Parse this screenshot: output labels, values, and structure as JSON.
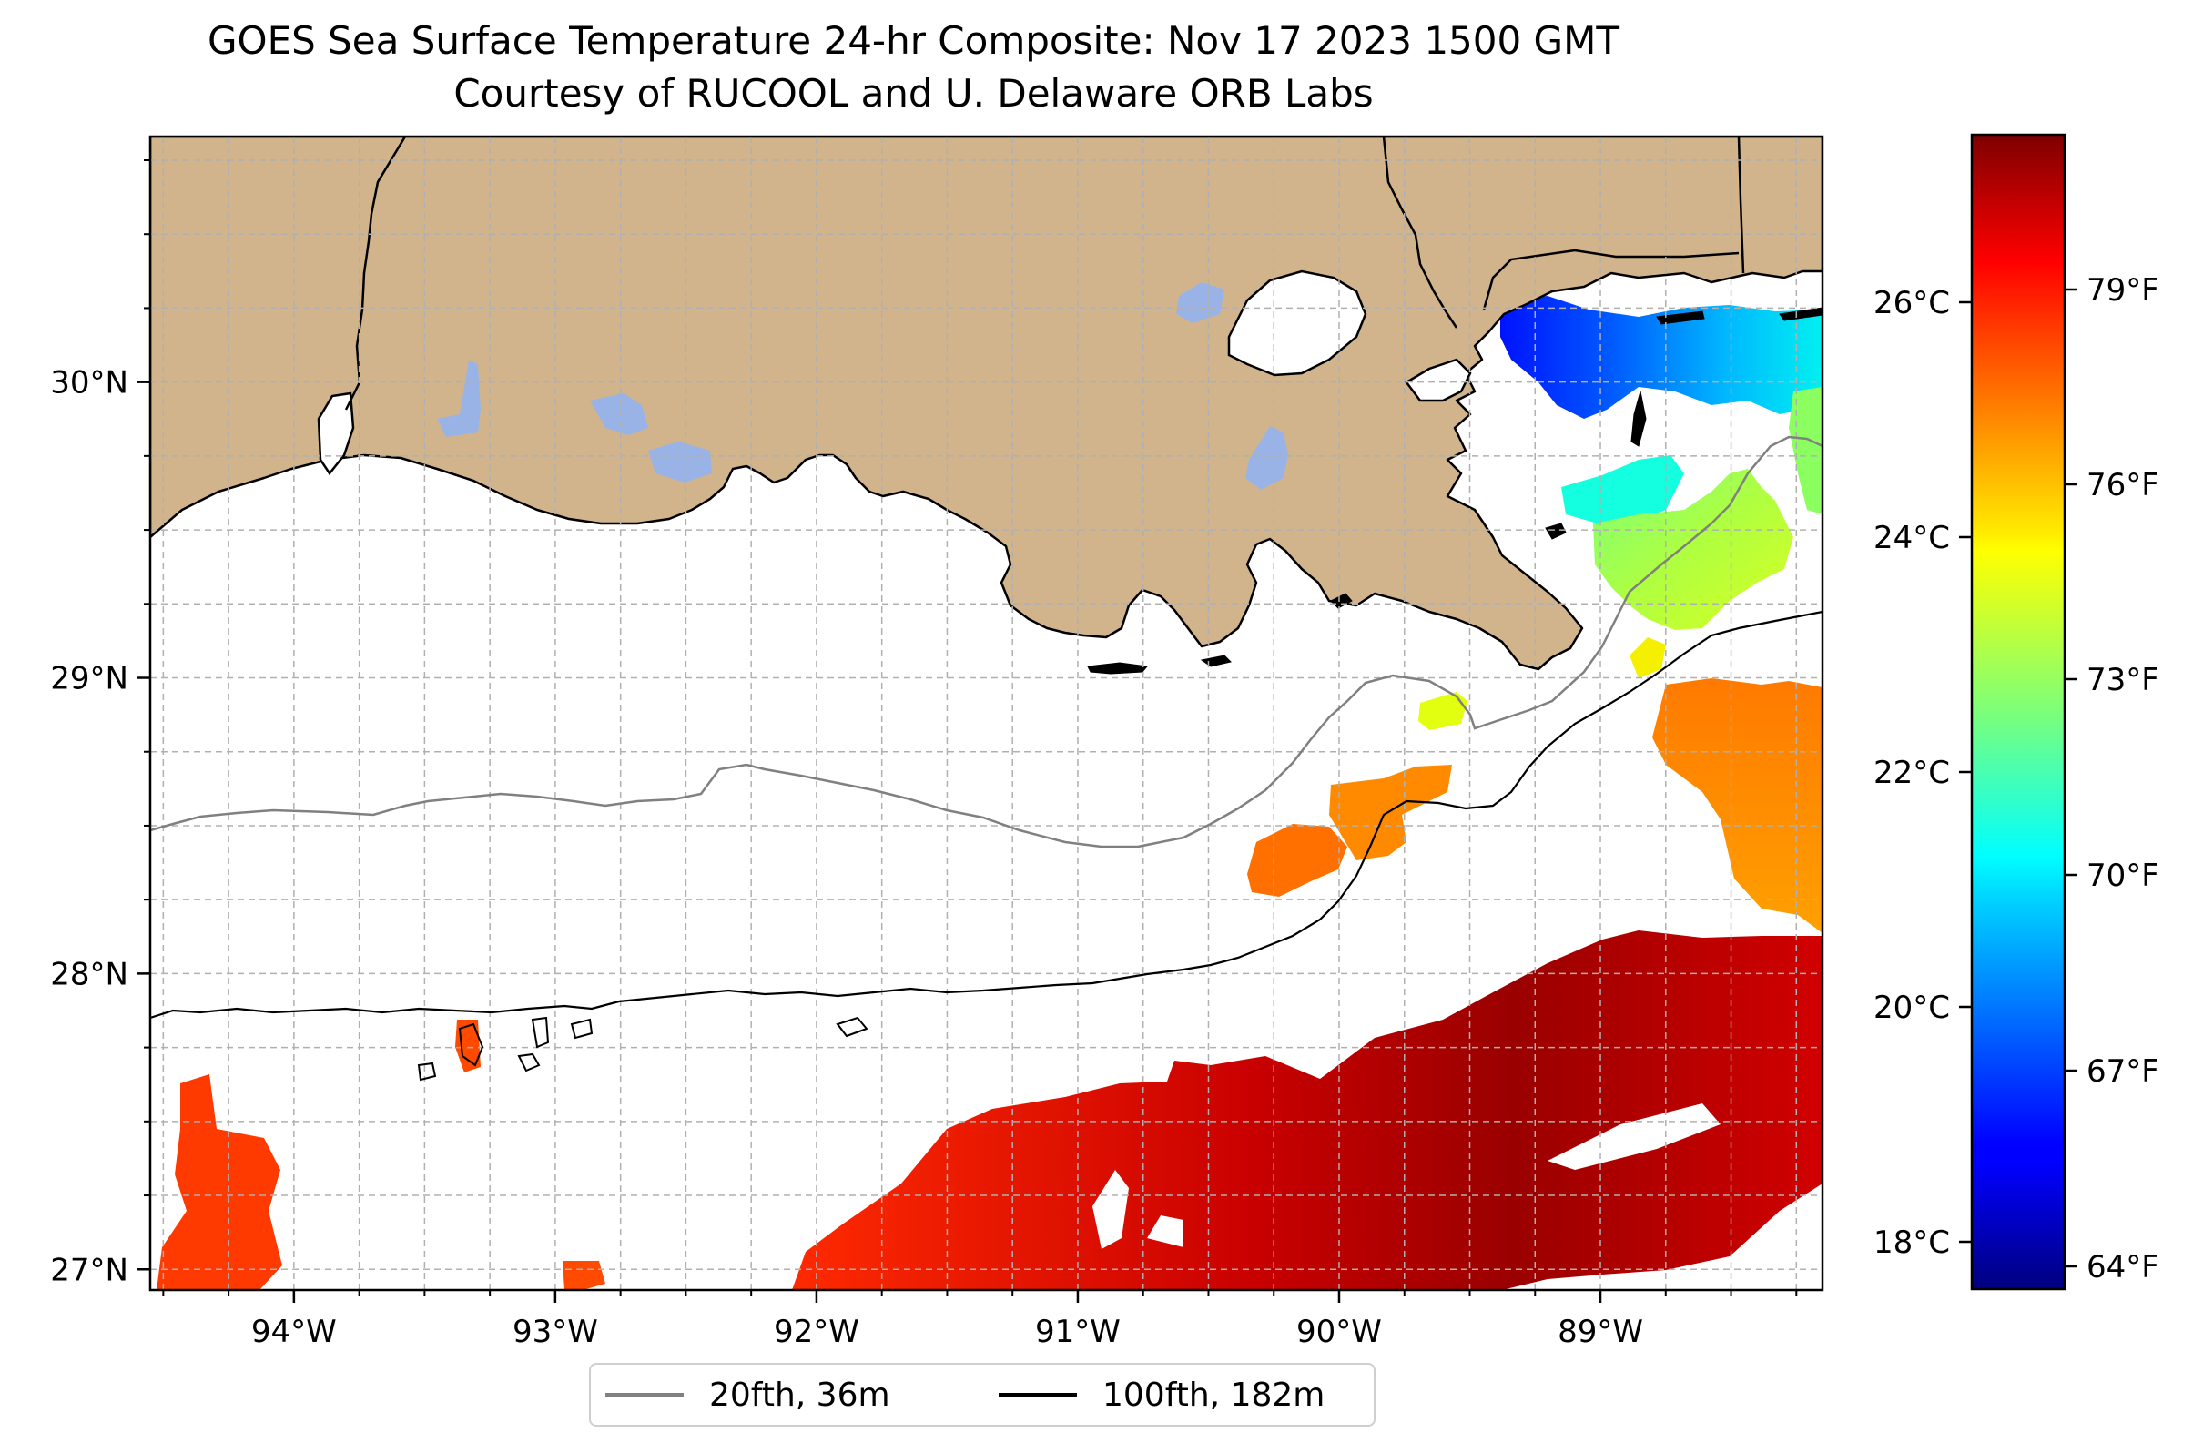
{
  "title": {
    "line1": "GOES Sea Surface Temperature 24-hr Composite: Nov 17 2023 1500 GMT",
    "line2": "Courtesy of RUCOOL and U. Delaware ORB Labs"
  },
  "map": {
    "lon_range": [
      -94.55,
      -88.15
    ],
    "lat_range": [
      26.93,
      30.83
    ],
    "lon_ticks": [
      "94°W",
      "93°W",
      "92°W",
      "91°W",
      "90°W",
      "89°W"
    ],
    "lat_ticks": [
      "27°N",
      "28°N",
      "29°N",
      "30°N"
    ],
    "colors": {
      "land": "#D2B48C",
      "lakes": "#99B3E6",
      "grid": "#b0b0b0",
      "ocean_nodata": "#ffffff"
    }
  },
  "colorbar": {
    "colormap": "jet",
    "celsius_ticks": [
      "18°C",
      "20°C",
      "22°C",
      "24°C",
      "26°C"
    ],
    "fahrenheit_ticks": [
      "64°F",
      "67°F",
      "70°F",
      "73°F",
      "76°F",
      "79°F"
    ]
  },
  "legend": {
    "items": [
      {
        "label": "20fth, 36m",
        "color": "#808080"
      },
      {
        "label": "100fth, 182m",
        "color": "#000000"
      }
    ]
  }
}
